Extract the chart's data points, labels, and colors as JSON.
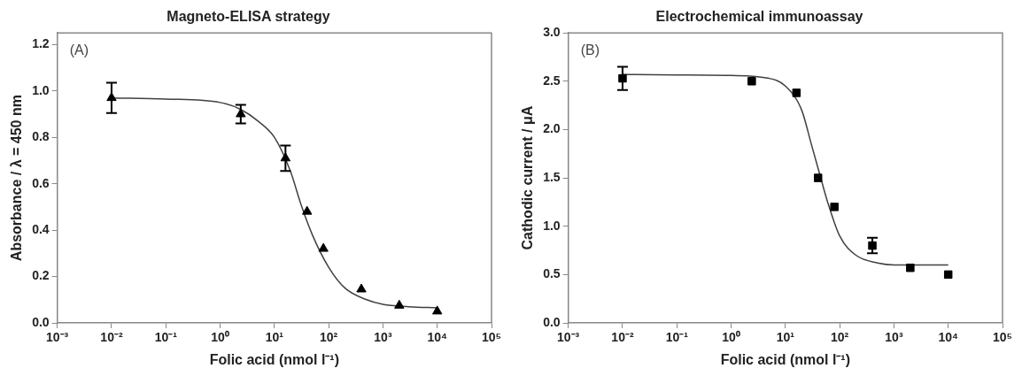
{
  "chart_data": [
    {
      "type": "scatter",
      "title": "Magneto-ELISA strategy",
      "xlabel": "Folic acid (nmol l⁻¹)",
      "ylabel": "Absorbance / λ = 450 nm",
      "annotations": [
        "(A)"
      ],
      "log": "x",
      "grid": false,
      "xlim": [
        0.001,
        100000
      ],
      "ylim": [
        0,
        1.25
      ],
      "xticks": [
        {
          "value": 0.001,
          "label": "10⁻³"
        },
        {
          "value": 0.01,
          "label": "10⁻²"
        },
        {
          "value": 0.1,
          "label": "10⁻¹"
        },
        {
          "value": 1,
          "label": "10⁰"
        },
        {
          "value": 10,
          "label": "10¹"
        },
        {
          "value": 100,
          "label": "10²"
        },
        {
          "value": 1000,
          "label": "10³"
        },
        {
          "value": 10000,
          "label": "10⁴"
        },
        {
          "value": 100000,
          "label": "10⁵"
        }
      ],
      "yticks": [
        {
          "value": 0,
          "label": "0.0"
        },
        {
          "value": 0.2,
          "label": "0.2"
        },
        {
          "value": 0.4,
          "label": "0.4"
        },
        {
          "value": 0.6,
          "label": "0.6"
        },
        {
          "value": 0.8,
          "label": "0.8"
        },
        {
          "value": 1,
          "label": "1.0"
        },
        {
          "value": 1.2,
          "label": "1.2"
        }
      ],
      "series": [
        {
          "type": "scatter",
          "marker": "triangle",
          "color": "#000000",
          "x": [
            0.01,
            2.4,
            16,
            40,
            80,
            400,
            2000,
            10000
          ],
          "values": [
            0.97,
            0.9,
            0.71,
            0.48,
            0.32,
            0.145,
            0.075,
            0.05
          ],
          "errors": [
            0.065,
            0.04,
            0.055,
            null,
            null,
            null,
            null,
            null
          ]
        },
        {
          "type": "line",
          "marker": "none",
          "color": "#404040",
          "x": [
            0.01,
            0.1,
            1,
            2.4,
            5,
            10,
            20,
            30,
            50,
            100,
            200,
            500,
            1000,
            3000,
            10000
          ],
          "values": [
            0.97,
            0.965,
            0.95,
            0.92,
            0.87,
            0.8,
            0.65,
            0.52,
            0.38,
            0.24,
            0.15,
            0.1,
            0.08,
            0.07,
            0.065
          ]
        }
      ]
    },
    {
      "type": "scatter",
      "title": "Electrochemical immunoassay",
      "xlabel": "Folic acid (nmol l⁻¹)",
      "ylabel": "Cathodic current / μA",
      "annotations": [
        "(B)"
      ],
      "log": "x",
      "grid": false,
      "xlim": [
        0.001,
        100000
      ],
      "ylim": [
        0,
        3
      ],
      "xticks": [
        {
          "value": 0.001,
          "label": "10⁻³"
        },
        {
          "value": 0.01,
          "label": "10⁻²"
        },
        {
          "value": 0.1,
          "label": "10⁻¹"
        },
        {
          "value": 1,
          "label": "10⁰"
        },
        {
          "value": 10,
          "label": "10¹"
        },
        {
          "value": 100,
          "label": "10²"
        },
        {
          "value": 1000,
          "label": "10³"
        },
        {
          "value": 10000,
          "label": "10⁴"
        },
        {
          "value": 100000,
          "label": "10⁵"
        }
      ],
      "yticks": [
        {
          "value": 0,
          "label": "0.0"
        },
        {
          "value": 0.5,
          "label": "0.5"
        },
        {
          "value": 1,
          "label": "1.0"
        },
        {
          "value": 1.5,
          "label": "1.5"
        },
        {
          "value": 2,
          "label": "2.0"
        },
        {
          "value": 2.5,
          "label": "2.5"
        },
        {
          "value": 3,
          "label": "3.0"
        }
      ],
      "series": [
        {
          "type": "scatter",
          "marker": "square",
          "color": "#000000",
          "x": [
            0.01,
            2.4,
            16,
            40,
            80,
            400,
            2000,
            10000
          ],
          "values": [
            2.53,
            2.5,
            2.38,
            1.5,
            1.2,
            0.8,
            0.57,
            0.5
          ],
          "errors": [
            0.12,
            null,
            null,
            null,
            null,
            0.08,
            null,
            null
          ]
        },
        {
          "type": "line",
          "marker": "none",
          "color": "#404040",
          "x": [
            0.01,
            0.1,
            1,
            5,
            10,
            20,
            30,
            40,
            60,
            100,
            200,
            500,
            1000,
            10000
          ],
          "values": [
            2.57,
            2.565,
            2.56,
            2.53,
            2.45,
            2.2,
            1.85,
            1.6,
            1.25,
            0.9,
            0.7,
            0.62,
            0.6,
            0.6
          ]
        }
      ]
    }
  ]
}
